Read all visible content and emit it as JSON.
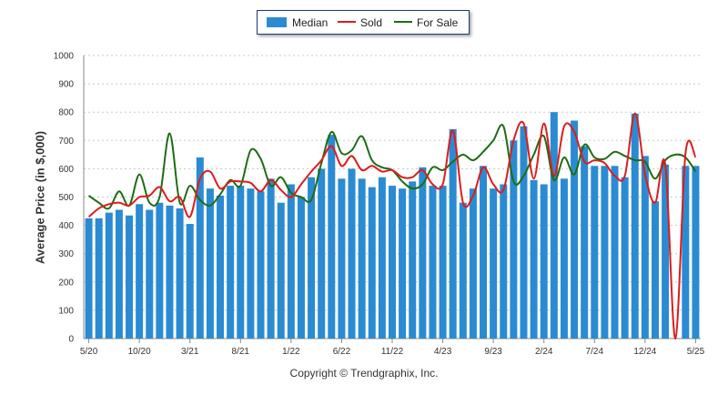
{
  "chart_data": {
    "type": "bar+line",
    "ylabel": "Average Price (in $,000)",
    "ylim": [
      0,
      1000
    ],
    "yticks": [
      0,
      100,
      200,
      300,
      400,
      500,
      600,
      700,
      800,
      900,
      1000
    ],
    "x_tick_labels": [
      "5/20",
      "10/20",
      "3/21",
      "8/21",
      "1/22",
      "6/22",
      "11/22",
      "4/23",
      "9/23",
      "2/24",
      "7/24",
      "12/24",
      "5/25"
    ],
    "x_tick_indices": [
      0,
      5,
      10,
      15,
      20,
      25,
      30,
      35,
      40,
      45,
      50,
      55,
      60
    ],
    "legend_position": "top-center",
    "grid": "horizontal-dashed",
    "series": [
      {
        "name": "Median",
        "kind": "bar",
        "color": "#2a8bd2",
        "values": [
          425,
          425,
          445,
          455,
          435,
          475,
          455,
          480,
          470,
          460,
          405,
          640,
          530,
          505,
          540,
          540,
          530,
          520,
          565,
          480,
          545,
          500,
          570,
          600,
          720,
          565,
          600,
          565,
          535,
          570,
          540,
          530,
          555,
          605,
          540,
          540,
          740,
          480,
          530,
          610,
          530,
          545,
          700,
          750,
          560,
          545,
          800,
          565,
          770,
          680,
          610,
          610,
          610,
          570,
          795,
          645,
          485,
          615,
          0,
          610,
          610
        ]
      },
      {
        "name": "Sold",
        "kind": "line",
        "color": "#e01b1b",
        "values": [
          430,
          460,
          475,
          480,
          470,
          500,
          505,
          535,
          485,
          500,
          430,
          565,
          590,
          530,
          555,
          555,
          550,
          520,
          560,
          525,
          500,
          545,
          590,
          630,
          680,
          610,
          645,
          595,
          610,
          590,
          595,
          570,
          570,
          595,
          545,
          545,
          735,
          480,
          505,
          605,
          545,
          525,
          700,
          760,
          565,
          760,
          575,
          750,
          730,
          625,
          630,
          620,
          575,
          575,
          795,
          580,
          480,
          615,
          0,
          655,
          640
        ]
      },
      {
        "name": "For Sale",
        "kind": "line",
        "color": "#1d6d14",
        "values": [
          505,
          480,
          460,
          520,
          470,
          580,
          480,
          500,
          725,
          480,
          540,
          490,
          470,
          510,
          560,
          540,
          665,
          635,
          540,
          570,
          515,
          500,
          490,
          620,
          730,
          655,
          665,
          715,
          630,
          605,
          595,
          555,
          530,
          545,
          605,
          595,
          625,
          650,
          630,
          660,
          700,
          750,
          555,
          575,
          650,
          715,
          560,
          640,
          580,
          685,
          640,
          635,
          660,
          645,
          630,
          625,
          565,
          630,
          650,
          640,
          590
        ]
      }
    ]
  },
  "legend": {
    "median": "Median",
    "sold": "Sold",
    "for_sale": "For Sale"
  },
  "footer": {
    "copyright": "Copyright © Trendgraphix, Inc."
  }
}
